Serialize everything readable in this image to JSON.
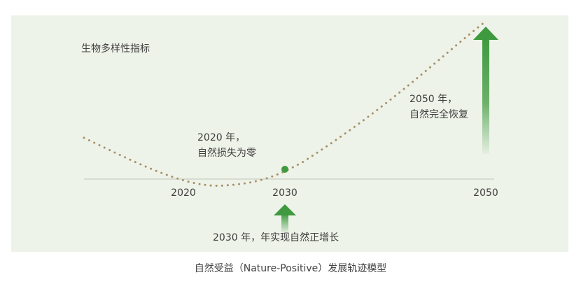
{
  "y_axis_label": "生物多样性指标",
  "x_ticks": [
    "2020",
    "2030",
    "2050"
  ],
  "annotations": {
    "y2020_line1": "2020 年，",
    "y2020_line2": "自然损失为零",
    "y2050_line1": "2050 年，",
    "y2050_line2": "自然完全恢复",
    "y2030": "2030 年，年实现自然正增长"
  },
  "caption": "自然受益（Nature-Positive）发展轨迹模型",
  "colors": {
    "panel": "#eef3e9",
    "curve": "#a8916a",
    "accent_green": "#3f9a3f",
    "axis": "#c9cfc3"
  },
  "icons": [
    "arrow-up-2030-icon",
    "arrow-up-2050-icon",
    "milestone-dot-2030-icon"
  ]
}
